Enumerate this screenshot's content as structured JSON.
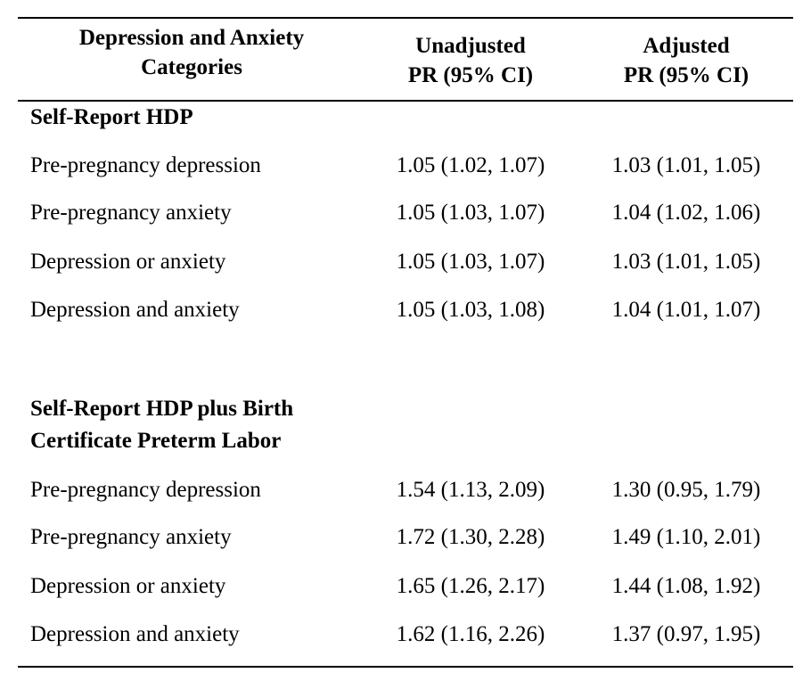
{
  "table": {
    "headers": {
      "category": [
        "Depression and Anxiety",
        "Categories"
      ],
      "unadjusted": [
        "Unadjusted",
        "PR (95% CI)"
      ],
      "adjusted": [
        "Adjusted",
        "PR (95% CI)"
      ]
    },
    "sections": [
      {
        "title": [
          "Self-Report HDP"
        ],
        "rows": [
          {
            "label": "Pre-pregnancy depression",
            "unadjusted": "1.05 (1.02, 1.07)",
            "adjusted": "1.03 (1.01, 1.05)"
          },
          {
            "label": "Pre-pregnancy anxiety",
            "unadjusted": "1.05 (1.03, 1.07)",
            "adjusted": "1.04 (1.02, 1.06)"
          },
          {
            "label": "Depression or anxiety",
            "unadjusted": "1.05 (1.03, 1.07)",
            "adjusted": "1.03 (1.01, 1.05)"
          },
          {
            "label": "Depression and anxiety",
            "unadjusted": "1.05 (1.03, 1.08)",
            "adjusted": "1.04 (1.01, 1.07)"
          }
        ]
      },
      {
        "title": [
          "Self-Report HDP plus Birth",
          "Certificate Preterm Labor"
        ],
        "rows": [
          {
            "label": "Pre-pregnancy depression",
            "unadjusted": "1.54 (1.13, 2.09)",
            "adjusted": "1.30 (0.95, 1.79)"
          },
          {
            "label": "Pre-pregnancy anxiety",
            "unadjusted": "1.72 (1.30, 2.28)",
            "adjusted": "1.49 (1.10, 2.01)"
          },
          {
            "label": "Depression or anxiety",
            "unadjusted": "1.65 (1.26, 2.17)",
            "adjusted": "1.44 (1.08, 1.92)"
          },
          {
            "label": "Depression and anxiety",
            "unadjusted": "1.62 (1.16, 2.26)",
            "adjusted": "1.37 (0.97, 1.95)"
          }
        ]
      }
    ]
  }
}
